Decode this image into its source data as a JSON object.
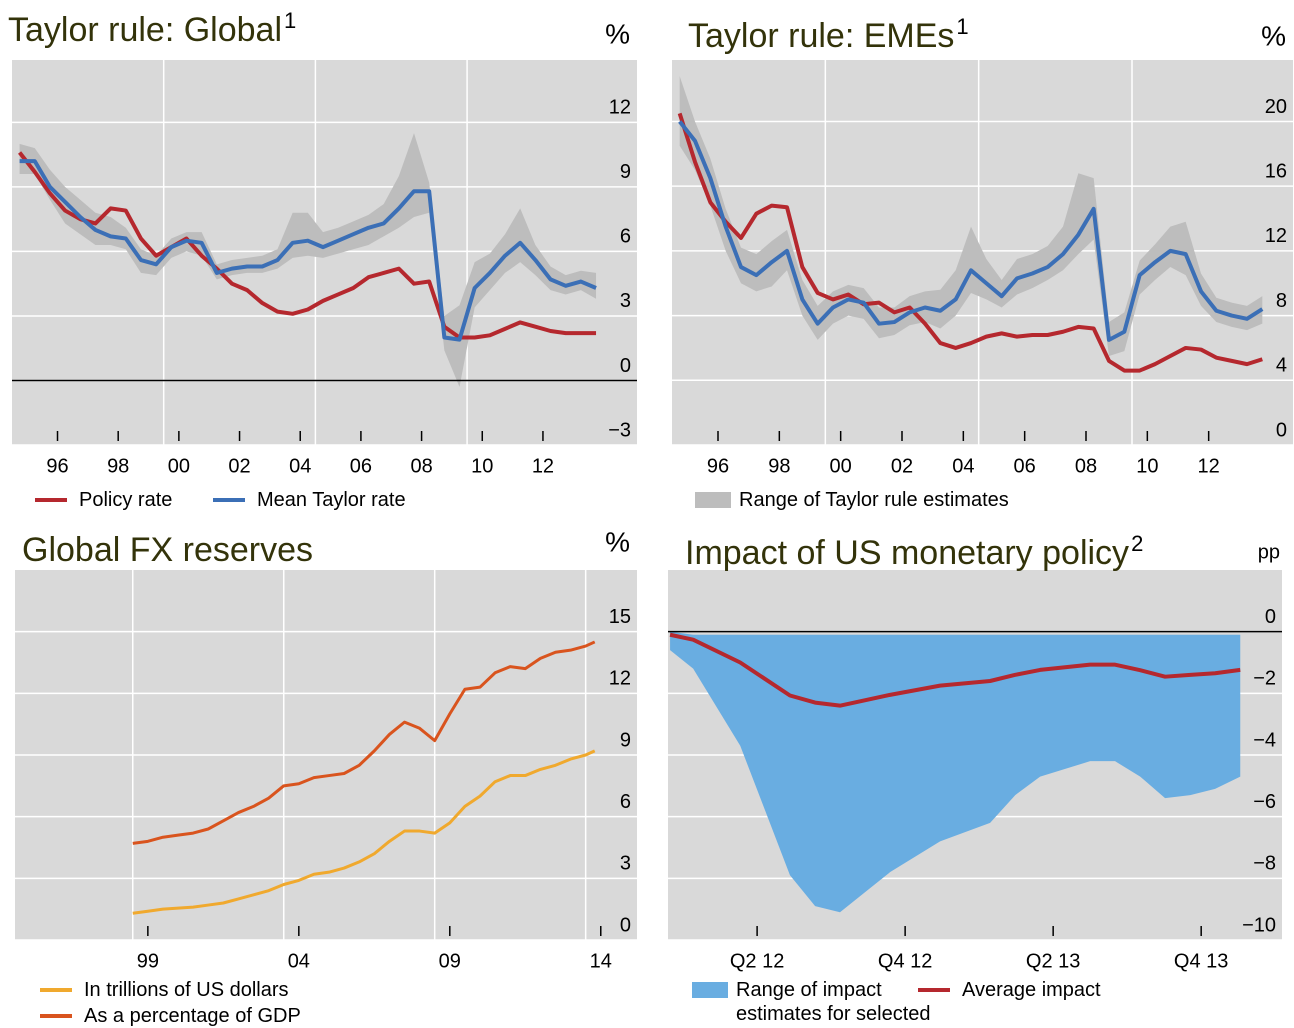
{
  "chart_data": [
    {
      "type": "line",
      "title": "Taylor rule: Global",
      "title_note": "1",
      "unit": "%",
      "xlim": [
        1995.0,
        2015.6
      ],
      "ylim": [
        -3,
        14.9
      ],
      "xticks": [
        {
          "value": 1996.5,
          "label": "96"
        },
        {
          "value": 1998.5,
          "label": "98"
        },
        {
          "value": 2000.5,
          "label": "00"
        },
        {
          "value": 2002.5,
          "label": "02"
        },
        {
          "value": 2004.5,
          "label": "04"
        },
        {
          "value": 2006.5,
          "label": "06"
        },
        {
          "value": 2008.5,
          "label": "08"
        },
        {
          "value": 2010.5,
          "label": "10"
        },
        {
          "value": 2012.5,
          "label": "12"
        }
      ],
      "yticks": [
        {
          "value": -3,
          "label": "−3"
        },
        0,
        3,
        6,
        9,
        12
      ],
      "xgrid": [
        2000,
        2005,
        2010
      ],
      "grid": true,
      "zero_line": true,
      "x": [
        1995.25,
        1995.75,
        1996.25,
        1996.75,
        1997.25,
        1997.75,
        1998.25,
        1998.75,
        1999.25,
        1999.75,
        2000.25,
        2000.75,
        2001.25,
        2001.75,
        2002.25,
        2002.75,
        2003.25,
        2003.75,
        2004.25,
        2004.75,
        2005.25,
        2005.75,
        2006.25,
        2006.75,
        2007.25,
        2007.75,
        2008.25,
        2008.75,
        2009.25,
        2009.75,
        2010.25,
        2010.75,
        2011.25,
        2011.75,
        2012.25,
        2012.75,
        2013.25,
        2013.75,
        2014.25
      ],
      "series": [
        {
          "type": "band",
          "color": "#bdbdbd",
          "low": [
            9.6,
            9.6,
            8.4,
            7.3,
            6.8,
            6.3,
            6.3,
            6.1,
            5.0,
            4.9,
            5.7,
            6.0,
            5.8,
            4.7,
            4.9,
            5.0,
            5.0,
            5.2,
            5.7,
            5.8,
            5.7,
            5.9,
            6.1,
            6.3,
            6.7,
            7.1,
            7.6,
            7.8,
            1.4,
            -0.3,
            3.4,
            4.2,
            5.0,
            5.5,
            4.9,
            4.2,
            4.0,
            4.2,
            3.8
          ],
          "high": [
            11.0,
            10.8,
            9.8,
            9.0,
            8.4,
            7.8,
            7.6,
            7.1,
            6.1,
            5.8,
            6.6,
            6.9,
            6.9,
            5.4,
            5.6,
            5.7,
            5.8,
            6.1,
            7.8,
            7.8,
            6.9,
            7.1,
            7.4,
            7.7,
            8.2,
            9.5,
            11.5,
            9.2,
            3.0,
            3.5,
            5.5,
            5.9,
            6.8,
            8.0,
            6.3,
            5.3,
            4.9,
            5.1,
            5.0
          ]
        },
        {
          "name": "Policy rate",
          "color": "#b5282e",
          "values": [
            10.6,
            9.7,
            8.7,
            7.9,
            7.5,
            7.3,
            8.0,
            7.9,
            6.6,
            5.8,
            6.2,
            6.6,
            5.8,
            5.2,
            4.5,
            4.2,
            3.6,
            3.2,
            3.1,
            3.3,
            3.7,
            4.0,
            4.3,
            4.8,
            5.0,
            5.2,
            4.5,
            4.6,
            2.5,
            2.0,
            2.0,
            2.1,
            2.4,
            2.7,
            2.5,
            2.3,
            2.2,
            2.2,
            2.2
          ]
        },
        {
          "name": "Mean Taylor rate",
          "color": "#3b6fb6",
          "values": [
            10.2,
            10.2,
            9.0,
            8.3,
            7.6,
            7.0,
            6.7,
            6.6,
            5.6,
            5.4,
            6.2,
            6.5,
            6.4,
            5.0,
            5.2,
            5.3,
            5.3,
            5.6,
            6.4,
            6.5,
            6.2,
            6.5,
            6.8,
            7.1,
            7.3,
            8.0,
            8.8,
            8.8,
            2.0,
            1.9,
            4.3,
            5.0,
            5.8,
            6.4,
            5.6,
            4.7,
            4.4,
            4.6,
            4.3
          ]
        }
      ]
    },
    {
      "type": "line",
      "title": "Taylor rule: EMEs",
      "title_note": "1",
      "unit": "%",
      "xlim": [
        1995.0,
        2015.25
      ],
      "ylim": [
        0,
        23.8
      ],
      "xticks": [
        {
          "value": 1996.5,
          "label": "96"
        },
        {
          "value": 1998.5,
          "label": "98"
        },
        {
          "value": 2000.5,
          "label": "00"
        },
        {
          "value": 2002.5,
          "label": "02"
        },
        {
          "value": 2004.5,
          "label": "04"
        },
        {
          "value": 2006.5,
          "label": "06"
        },
        {
          "value": 2008.5,
          "label": "08"
        },
        {
          "value": 2010.5,
          "label": "10"
        },
        {
          "value": 2012.5,
          "label": "12"
        }
      ],
      "yticks": [
        0,
        4,
        8,
        12,
        16,
        20
      ],
      "xgrid": [
        2000,
        2005,
        2010
      ],
      "grid": true,
      "zero_line": false,
      "x": [
        1995.25,
        1995.75,
        1996.25,
        1996.75,
        1997.25,
        1997.75,
        1998.25,
        1998.75,
        1999.25,
        1999.75,
        2000.25,
        2000.75,
        2001.25,
        2001.75,
        2002.25,
        2002.75,
        2003.25,
        2003.75,
        2004.25,
        2004.75,
        2005.25,
        2005.75,
        2006.25,
        2006.75,
        2007.25,
        2007.75,
        2008.25,
        2008.75,
        2009.25,
        2009.75,
        2010.25,
        2010.75,
        2011.25,
        2011.75,
        2012.25,
        2012.75,
        2013.25,
        2013.75,
        2014.25
      ],
      "series": [
        {
          "type": "band",
          "name": "Range of Taylor rule estimates",
          "color": "#bdbdbd",
          "low": [
            18.5,
            17.0,
            14.8,
            12.0,
            10.0,
            9.5,
            9.8,
            10.8,
            8.0,
            6.5,
            7.5,
            8.0,
            7.8,
            6.6,
            6.8,
            7.4,
            7.6,
            7.2,
            8.0,
            9.4,
            9.0,
            8.5,
            9.3,
            9.7,
            10.2,
            10.8,
            11.8,
            12.7,
            5.5,
            5.8,
            9.3,
            10.2,
            11.0,
            10.5,
            8.6,
            7.6,
            7.3,
            7.1,
            7.5
          ],
          "high": [
            22.8,
            20.0,
            17.7,
            14.6,
            12.2,
            11.8,
            12.6,
            13.3,
            10.2,
            8.6,
            9.5,
            9.9,
            9.7,
            8.5,
            8.5,
            9.2,
            9.5,
            9.6,
            10.8,
            13.5,
            11.5,
            10.2,
            11.5,
            11.8,
            12.3,
            13.5,
            16.8,
            16.5,
            7.6,
            8.2,
            11.4,
            12.4,
            13.5,
            13.8,
            10.6,
            9.1,
            8.8,
            8.6,
            9.2
          ]
        },
        {
          "color": "#b5282e",
          "values": [
            20.5,
            17.5,
            15.0,
            13.8,
            12.8,
            14.3,
            14.8,
            14.7,
            11.0,
            9.4,
            9.0,
            9.3,
            8.7,
            8.8,
            8.2,
            8.5,
            7.5,
            6.3,
            6.0,
            6.3,
            6.7,
            6.9,
            6.7,
            6.8,
            6.8,
            7.0,
            7.3,
            7.2,
            5.2,
            4.6,
            4.6,
            5.0,
            5.5,
            6.0,
            5.9,
            5.4,
            5.2,
            5.0,
            5.3
          ]
        },
        {
          "color": "#3b6fb6",
          "values": [
            20.0,
            18.8,
            16.5,
            13.5,
            11.0,
            10.5,
            11.3,
            12.0,
            9.0,
            7.5,
            8.5,
            9.0,
            8.8,
            7.5,
            7.6,
            8.2,
            8.5,
            8.3,
            9.0,
            10.8,
            10.0,
            9.2,
            10.3,
            10.6,
            11.0,
            11.8,
            13.0,
            14.6,
            6.5,
            7.0,
            10.5,
            11.3,
            12.0,
            11.8,
            9.5,
            8.3,
            8.0,
            7.8,
            8.4
          ]
        }
      ]
    },
    {
      "type": "line",
      "title": "Global FX reserves",
      "unit": "%",
      "xlim": [
        1995.1,
        2015.7
      ],
      "ylim": [
        0,
        18
      ],
      "xticks": [
        {
          "value": 1999.5,
          "label": "99"
        },
        {
          "value": 2004.5,
          "label": "04"
        },
        {
          "value": 2009.5,
          "label": "09"
        },
        {
          "value": 2014.5,
          "label": "14"
        }
      ],
      "yticks": [
        0,
        3,
        6,
        9,
        12,
        15
      ],
      "xgrid": [
        1999,
        2004,
        2009,
        2014
      ],
      "grid": true,
      "zero_line": false,
      "x": [
        1999,
        1999.5,
        2000,
        2000.5,
        2001,
        2001.5,
        2002,
        2002.5,
        2003,
        2003.5,
        2004,
        2004.5,
        2005,
        2005.5,
        2006,
        2006.5,
        2007,
        2007.5,
        2008,
        2008.5,
        2009,
        2009.5,
        2010,
        2010.5,
        2011,
        2011.5,
        2012,
        2012.5,
        2013,
        2013.5,
        2014,
        2014.3
      ],
      "series": [
        {
          "name": "In trillions of US dollars",
          "color": "#f0a92e",
          "values": [
            1.3,
            1.4,
            1.5,
            1.55,
            1.6,
            1.7,
            1.8,
            2.0,
            2.2,
            2.4,
            2.7,
            2.9,
            3.2,
            3.3,
            3.5,
            3.8,
            4.2,
            4.8,
            5.3,
            5.3,
            5.2,
            5.7,
            6.5,
            7.0,
            7.7,
            8.0,
            8.0,
            8.3,
            8.5,
            8.8,
            9.0,
            9.2
          ]
        },
        {
          "name": "As a percentage of GDP",
          "color": "#d9541e",
          "values": [
            4.7,
            4.8,
            5.0,
            5.1,
            5.2,
            5.4,
            5.8,
            6.2,
            6.5,
            6.9,
            7.5,
            7.6,
            7.9,
            8.0,
            8.1,
            8.5,
            9.2,
            10.0,
            10.6,
            10.3,
            9.7,
            11.0,
            12.2,
            12.3,
            13.0,
            13.3,
            13.2,
            13.7,
            14.0,
            14.1,
            14.3,
            14.5
          ]
        }
      ]
    },
    {
      "type": "line",
      "title": "Impact of US monetary policy",
      "title_note": "2",
      "unit": "pp",
      "xlim": [
        2012.074,
        2014.148
      ],
      "ylim": [
        -10,
        2
      ],
      "xticks": [
        {
          "value": 2012.375,
          "label": "Q2 12"
        },
        {
          "value": 2012.875,
          "label": "Q4 12"
        },
        {
          "value": 2013.375,
          "label": "Q2 13"
        },
        {
          "value": 2013.875,
          "label": "Q4 13"
        }
      ],
      "yticks": [
        {
          "value": -10,
          "label": "−10"
        },
        {
          "value": -8,
          "label": "−8"
        },
        {
          "value": -6,
          "label": "−6"
        },
        {
          "value": -4,
          "label": "−4"
        },
        {
          "value": -2,
          "label": "−2"
        },
        0
      ],
      "grid": true,
      "zero_line": true,
      "x": [
        2012.081,
        2012.159,
        2012.318,
        2012.486,
        2012.571,
        2012.655,
        2012.824,
        2012.993,
        2013.162,
        2013.247,
        2013.331,
        2013.5,
        2013.584,
        2013.669,
        2013.753,
        2013.838,
        2013.922,
        2014.007
      ],
      "series": [
        {
          "type": "band",
          "name": "Range of impact estimates for selected EMEs",
          "color": "#69ade1",
          "low": [
            -0.6,
            -1.2,
            -3.7,
            -7.9,
            -8.9,
            -9.1,
            -7.8,
            -6.8,
            -6.2,
            -5.3,
            -4.7,
            -4.2,
            -4.2,
            -4.7,
            -5.4,
            -5.3,
            -5.1,
            -4.7
          ],
          "high": [
            0,
            -0.1,
            -0.1,
            -0.1,
            -0.1,
            -0.1,
            -0.1,
            -0.1,
            -0.1,
            -0.1,
            -0.1,
            -0.1,
            -0.1,
            -0.1,
            -0.1,
            -0.1,
            -0.1,
            -0.1
          ]
        },
        {
          "name": "Average impact",
          "color": "#b5282e",
          "values": [
            -0.1,
            -0.26,
            -1.0,
            -2.07,
            -2.3,
            -2.4,
            -2.05,
            -1.75,
            -1.6,
            -1.4,
            -1.24,
            -1.07,
            -1.07,
            -1.25,
            -1.46,
            -1.4,
            -1.35,
            -1.24
          ]
        }
      ]
    }
  ]
}
